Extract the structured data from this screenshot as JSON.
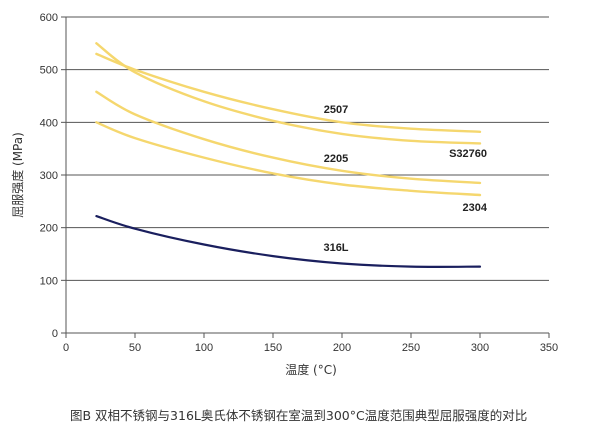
{
  "caption": "图B 双相不锈钢与316L奥氏体不锈钢在室温到300°C温度范围典型屈服强度的对比",
  "chart_data": {
    "type": "line",
    "xlabel": "温度 (°C)",
    "ylabel": "屈服强度 (MPa)",
    "xlim": [
      0,
      350
    ],
    "ylim": [
      0,
      600
    ],
    "xticks": [
      0,
      50,
      100,
      150,
      200,
      250,
      300,
      350
    ],
    "yticks": [
      0,
      100,
      200,
      300,
      400,
      500,
      600
    ],
    "grid": "horizontal",
    "series": [
      {
        "name": "2507",
        "color": "#f5d76e",
        "x": [
          22,
          50,
          100,
          150,
          200,
          250,
          300
        ],
        "y": [
          530,
          500,
          458,
          425,
          400,
          388,
          382
        ]
      },
      {
        "name": "S32760",
        "color": "#f5d76e",
        "x": [
          22,
          50,
          100,
          150,
          200,
          250,
          300
        ],
        "y": [
          550,
          495,
          440,
          403,
          378,
          365,
          360
        ]
      },
      {
        "name": "2205",
        "color": "#f5d76e",
        "x": [
          22,
          50,
          100,
          150,
          200,
          250,
          300
        ],
        "y": [
          458,
          415,
          368,
          333,
          308,
          293,
          285
        ]
      },
      {
        "name": "2304",
        "color": "#f5d76e",
        "x": [
          22,
          50,
          100,
          150,
          200,
          250,
          300
        ],
        "y": [
          400,
          370,
          333,
          303,
          282,
          270,
          262
        ]
      },
      {
        "name": "316L",
        "color": "#1a1f5e",
        "x": [
          22,
          50,
          100,
          150,
          200,
          250,
          300
        ],
        "y": [
          222,
          198,
          168,
          146,
          132,
          126,
          126
        ]
      }
    ]
  }
}
